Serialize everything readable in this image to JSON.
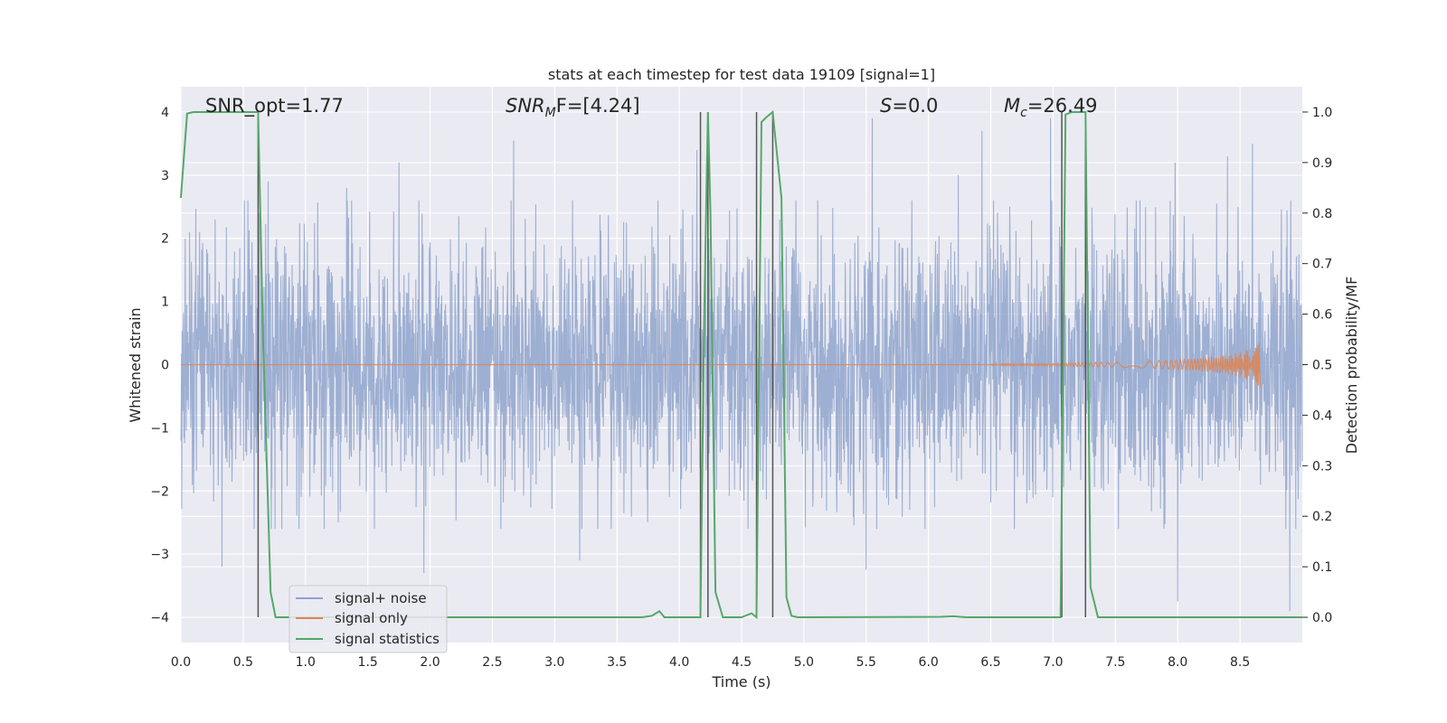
{
  "chart_data": {
    "type": "line",
    "title": "stats at each timestep for test data 19109 [signal=1]",
    "xlabel": "Time (s)",
    "ylabel": "Whitened strain",
    "ylabel_right": "Detection probability/MF",
    "xlim": [
      0.0,
      9.0
    ],
    "ylim": [
      -4.4,
      4.4
    ],
    "ylim_right": [
      -0.05,
      1.05
    ],
    "x_ticks": [
      "0.0",
      "0.5",
      "1.0",
      "1.5",
      "2.0",
      "2.5",
      "3.0",
      "3.5",
      "4.0",
      "4.5",
      "5.0",
      "5.5",
      "6.0",
      "6.5",
      "7.0",
      "7.5",
      "8.0",
      "8.5"
    ],
    "y_ticks": [
      "4",
      "3",
      "2",
      "1",
      "0",
      "−1",
      "−2",
      "−3",
      "−4"
    ],
    "y_ticks_right": [
      "1.0",
      "0.9",
      "0.8",
      "0.7",
      "0.6",
      "0.5",
      "0.4",
      "0.3",
      "0.2",
      "0.1",
      "0.0"
    ],
    "grid": true,
    "annotations": {
      "snr_opt": "SNR_opt=1.77",
      "snr_mf_main": "SNR",
      "snr_mf_sub": "M",
      "snr_mf_rest": "F=[4.24]",
      "s_main": "S",
      "s_rest": "=0.0",
      "mc_main": "M",
      "mc_sub": "c",
      "mc_rest": "=26.49"
    },
    "legend": {
      "position": "lower-left",
      "entries": [
        "signal+ noise",
        "signal only",
        "signal statistics"
      ]
    },
    "colors": {
      "noise": "#8fa4cc",
      "signal": "#dd8452",
      "statistics": "#55a868",
      "vlines": "#555555",
      "background": "#eaeaf2"
    },
    "noise_envelope": {
      "typical_amplitude": 1.6,
      "peaks": [
        {
          "x": 0.07,
          "y": 2.1
        },
        {
          "x": 0.63,
          "y": 2.4
        },
        {
          "x": 0.7,
          "y": 2.9
        },
        {
          "x": 1.33,
          "y": 2.8
        },
        {
          "x": 1.75,
          "y": 3.2
        },
        {
          "x": 2.67,
          "y": 3.55
        },
        {
          "x": 4.14,
          "y": 3.4
        },
        {
          "x": 5.55,
          "y": 3.9
        },
        {
          "x": 6.24,
          "y": 3.0
        },
        {
          "x": 6.43,
          "y": 3.7
        },
        {
          "x": 6.98,
          "y": 3.9
        },
        {
          "x": 7.98,
          "y": 3.2
        },
        {
          "x": 8.4,
          "y": 3.3
        },
        {
          "x": 8.6,
          "y": 3.5
        },
        {
          "x": 0.33,
          "y": -3.2
        },
        {
          "x": 1.95,
          "y": -3.3
        },
        {
          "x": 3.2,
          "y": -3.1
        },
        {
          "x": 5.5,
          "y": -3.25
        },
        {
          "x": 8.0,
          "y": -3.75
        },
        {
          "x": 8.9,
          "y": -3.9
        }
      ]
    },
    "signal_only": {
      "x": [
        6.5,
        7.0,
        7.5,
        7.8,
        8.0,
        8.2,
        8.4,
        8.5,
        8.6,
        8.64,
        8.66
      ],
      "amplitude": [
        0.01,
        0.02,
        0.04,
        0.06,
        0.08,
        0.11,
        0.16,
        0.2,
        0.28,
        0.35,
        0.4
      ]
    },
    "statistics": {
      "x": [
        0.0,
        0.05,
        0.1,
        0.15,
        0.2,
        0.3,
        0.4,
        0.5,
        0.55,
        0.6,
        0.62,
        0.66,
        0.72,
        0.76,
        0.8,
        3.7,
        3.78,
        3.84,
        3.88,
        3.92,
        4.0,
        4.1,
        4.17,
        4.2,
        4.23,
        4.25,
        4.29,
        4.35,
        4.4,
        4.5,
        4.58,
        4.62,
        4.66,
        4.7,
        4.75,
        4.82,
        4.86,
        4.9,
        4.95,
        5.0,
        6.1,
        6.2,
        6.3,
        7.0,
        7.06,
        7.1,
        7.15,
        7.2,
        7.26,
        7.3,
        7.36,
        7.4,
        9.0
      ],
      "y": [
        0.83,
        0.997,
        1.0,
        1.0,
        1.0,
        1.0,
        1.0,
        1.0,
        1.0,
        1.0,
        1.0,
        0.55,
        0.05,
        0.0,
        0.0,
        0.0,
        0.003,
        0.012,
        0.0,
        0.0,
        0.0,
        0.0,
        0.0,
        0.6,
        1.0,
        0.8,
        0.05,
        0.0,
        0.0,
        0.0,
        0.008,
        0.0,
        0.98,
        0.99,
        1.0,
        0.83,
        0.04,
        0.003,
        0.0,
        0.0,
        0.001,
        0.002,
        0.0,
        0.0,
        0.0,
        0.995,
        1.0,
        1.0,
        1.0,
        0.06,
        0.0,
        0.0,
        0.0
      ]
    },
    "vlines": {
      "x": [
        0.62,
        4.17,
        4.23,
        4.62,
        4.75,
        7.07,
        7.26
      ],
      "y_from": -4.0,
      "y_to": 4.0
    }
  }
}
